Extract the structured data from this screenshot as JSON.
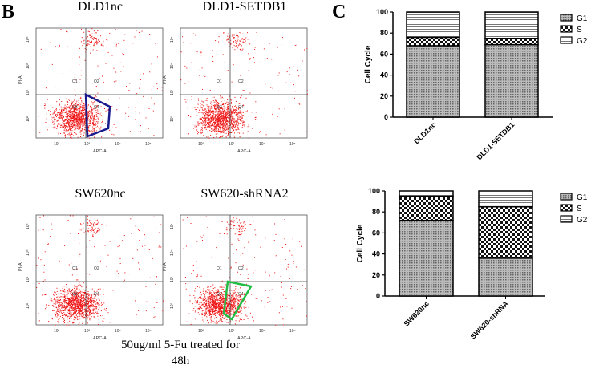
{
  "panels": {
    "b": "B",
    "c": "C"
  },
  "flow_plots": [
    {
      "title": "DLD1nc",
      "gate_color": "#1a1a8c",
      "gate": "low"
    },
    {
      "title": "DLD1-SETDB1",
      "gate_color": null
    },
    {
      "title": "SW620nc",
      "gate_color": null
    },
    {
      "title": "SW620-shRNA2",
      "gate_color": "#22bb44",
      "gate": "low"
    }
  ],
  "flow_axes": {
    "xlabel": "APC-A",
    "ylabel": "PI-A",
    "ticks": [
      "10²",
      "10³",
      "10⁴",
      "10⁵"
    ],
    "quadrants": [
      "Q1",
      "Q2",
      "Q3",
      "Q4"
    ],
    "dot_color": "#ee1111"
  },
  "caption": {
    "line1": "50ug/ml 5-Fu treated for",
    "line2": "48h"
  },
  "chart_data": [
    {
      "type": "bar",
      "stacked": true,
      "categories": [
        "DLD1nc",
        "DLD1-SETDB1"
      ],
      "ylabel": "Cell Cycle",
      "ylim": [
        0,
        100
      ],
      "yticks": [
        0,
        20,
        40,
        60,
        80,
        100
      ],
      "legend": "right",
      "series": [
        {
          "name": "G1",
          "values": [
            68,
            69
          ]
        },
        {
          "name": "S",
          "values": [
            8,
            6
          ]
        },
        {
          "name": "G2",
          "values": [
            24,
            25
          ]
        }
      ]
    },
    {
      "type": "bar",
      "stacked": true,
      "categories": [
        "SW620nc",
        "SW620-shRNA"
      ],
      "ylabel": "Cell Cycle",
      "ylim": [
        0,
        100
      ],
      "yticks": [
        0,
        20,
        40,
        60,
        80,
        100
      ],
      "legend": "right",
      "series": [
        {
          "name": "G1",
          "values": [
            72,
            36
          ]
        },
        {
          "name": "S",
          "values": [
            23,
            49
          ]
        },
        {
          "name": "G2",
          "values": [
            5,
            15
          ]
        }
      ]
    }
  ]
}
